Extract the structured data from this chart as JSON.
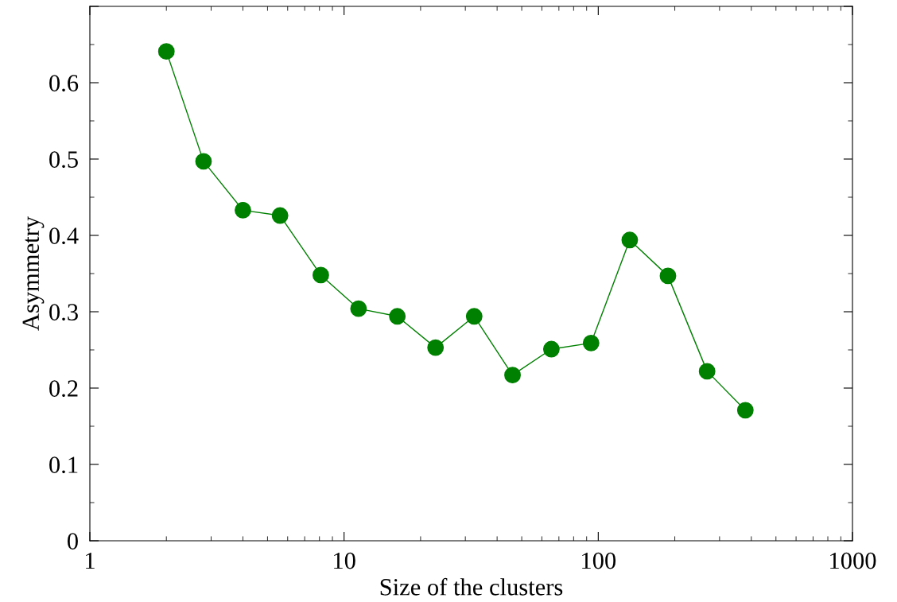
{
  "chart_data": {
    "type": "line",
    "xlabel": "Size of the clusters",
    "ylabel": "Asymmetry",
    "log": "x",
    "xlim": [
      1,
      1000
    ],
    "xticks": [
      1,
      10,
      100,
      1000
    ],
    "ylim": [
      0,
      0.7
    ],
    "yticks": [
      0,
      0.1,
      0.2,
      0.3,
      0.4,
      0.5,
      0.6,
      {
        "value": 0.7,
        "label": null
      }
    ],
    "marker": "circle",
    "line_style": "solid",
    "series": [
      {
        "color": "#008000",
        "x": [
          2.0,
          2.8,
          4.0,
          5.6,
          8.1,
          11.4,
          16.2,
          22.9,
          32.5,
          46,
          65.4,
          93.7,
          133,
          188,
          268,
          379
        ],
        "values": [
          0.641,
          0.497,
          0.433,
          0.426,
          0.348,
          0.304,
          0.294,
          0.253,
          0.294,
          0.217,
          0.251,
          0.259,
          0.394,
          0.347,
          0.222,
          0.171
        ]
      }
    ]
  }
}
